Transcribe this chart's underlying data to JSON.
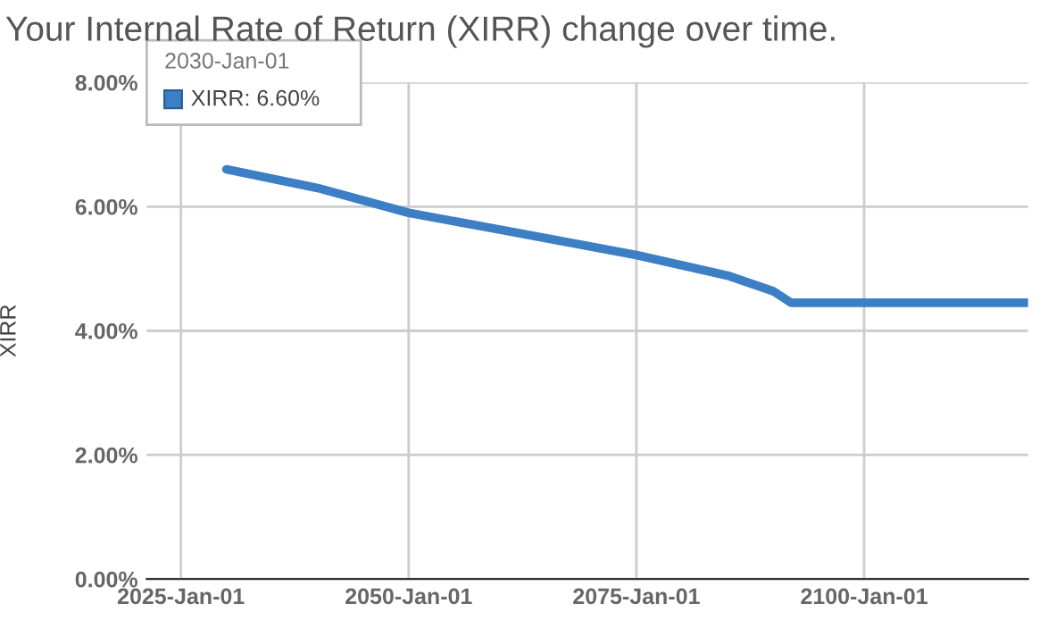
{
  "chart_data": {
    "type": "line",
    "title": "Your Internal Rate of Return (XIRR) change over time.",
    "ylabel": "XIRR",
    "x": [
      "2030-01-01",
      "2040-01-01",
      "2050-01-01",
      "2060-01-01",
      "2075-01-01",
      "2085-01-01",
      "2090-01-01",
      "2092-01-01",
      "2118-01-01"
    ],
    "series": [
      {
        "color": "#3d7fc4",
        "values": [
          6.6,
          6.3,
          5.9,
          5.63,
          5.22,
          4.89,
          4.64,
          4.45,
          4.45
        ]
      }
    ],
    "xlim": [
      "2021-04-01",
      "2118-01-01"
    ],
    "xticks": [
      {
        "value": "2025-01-01",
        "label": "2025-Jan-01"
      },
      {
        "value": "2050-01-01",
        "label": "2050-Jan-01"
      },
      {
        "value": "2075-01-01",
        "label": "2075-Jan-01"
      },
      {
        "value": "2100-01-01",
        "label": "2100-Jan-01"
      }
    ],
    "ylim": [
      0,
      8
    ],
    "yticks": [
      {
        "value": 0,
        "label": "0.00%"
      },
      {
        "value": 2,
        "label": "2.00%"
      },
      {
        "value": 4,
        "label": "4.00%"
      },
      {
        "value": 6,
        "label": "6.00%"
      },
      {
        "value": 8,
        "label": "8.00%"
      }
    ],
    "grid": true,
    "annotations": [
      "2030-Jan-01",
      "XIRR: 6.60%"
    ]
  }
}
